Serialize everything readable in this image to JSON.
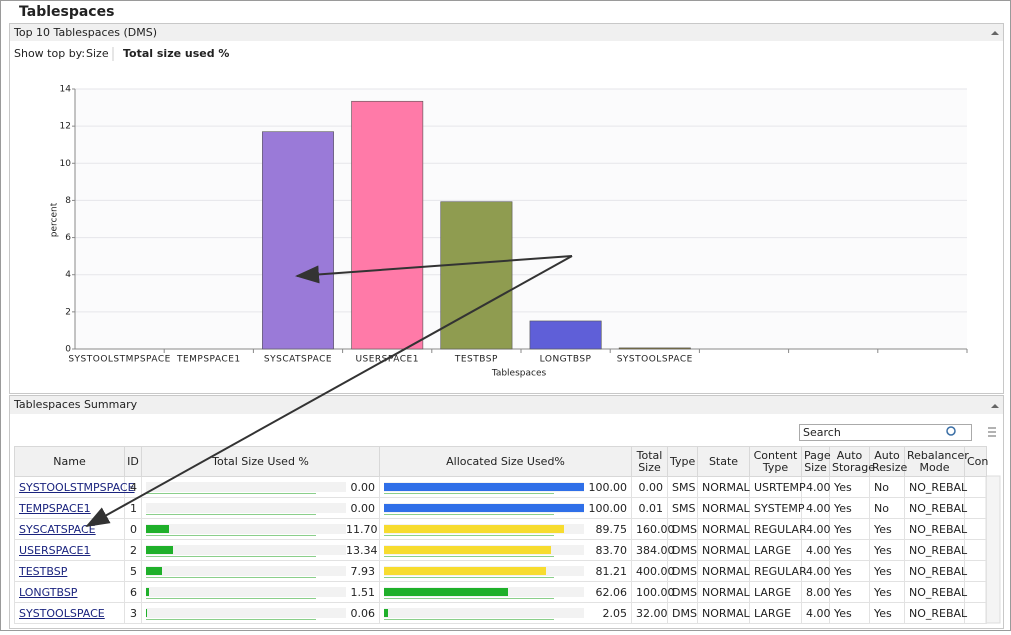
{
  "title": "Tablespaces",
  "top_panel": {
    "title": "Top 10 Tablespaces (DMS)",
    "show_top_by_label": "Show top by:",
    "options": [
      "Size",
      "Total size used %"
    ]
  },
  "chart_data": {
    "type": "bar",
    "categories": [
      "SYSTOOLSTMPSPACE",
      "TEMPSPACE1",
      "SYSCATSPACE",
      "USERSPACE1",
      "TESTBSP",
      "LONGTBSP",
      "SYSTOOLSPACE",
      null,
      null,
      null
    ],
    "values": [
      0,
      0,
      11.7,
      13.34,
      7.93,
      1.51,
      0.06,
      null,
      null,
      null
    ],
    "colors": [
      null,
      null,
      "#9a7ad8",
      "#ff7aa8",
      "#8f9c50",
      "#5f5fd8",
      "#8a7a3a",
      null,
      null,
      null
    ],
    "xlabel": "Tablespaces",
    "ylabel": "percent",
    "ylim": [
      0,
      14
    ],
    "yticks": [
      0,
      2,
      4,
      6,
      8,
      10,
      12,
      14
    ],
    "grid": true
  },
  "summary_panel": {
    "title": "Tablespaces Summary",
    "search_placeholder": "Search"
  },
  "table": {
    "columns": [
      "Name",
      "ID",
      "Total Size Used %",
      "Allocated Size Used%",
      "Total Size",
      "Type",
      "State",
      "Content Type",
      "Page Size",
      "Auto Storage",
      "Auto Resize",
      "Rebalancer Mode",
      "Con"
    ],
    "rows": [
      [
        "SYSTOOLSTMPSPACE",
        "4",
        "0.00",
        "100.00",
        "0.00",
        "SMS",
        "NORMAL",
        "USRTEMP",
        "4.00",
        "Yes",
        "No",
        "NO_REBAL"
      ],
      [
        "TEMPSPACE1",
        "1",
        "0.00",
        "100.00",
        "0.01",
        "SMS",
        "NORMAL",
        "SYSTEMP",
        "4.00",
        "Yes",
        "No",
        "NO_REBAL"
      ],
      [
        "SYSCATSPACE",
        "0",
        "11.70",
        "89.75",
        "160.00",
        "DMS",
        "NORMAL",
        "REGULAR",
        "4.00",
        "Yes",
        "Yes",
        "NO_REBAL"
      ],
      [
        "USERSPACE1",
        "2",
        "13.34",
        "83.70",
        "384.00",
        "DMS",
        "NORMAL",
        "LARGE",
        "4.00",
        "Yes",
        "Yes",
        "NO_REBAL"
      ],
      [
        "TESTBSP",
        "5",
        "7.93",
        "81.21",
        "400.00",
        "DMS",
        "NORMAL",
        "REGULAR",
        "4.00",
        "Yes",
        "Yes",
        "NO_REBAL"
      ],
      [
        "LONGTBSP",
        "6",
        "1.51",
        "62.06",
        "100.00",
        "DMS",
        "NORMAL",
        "LARGE",
        "8.00",
        "Yes",
        "Yes",
        "NO_REBAL"
      ],
      [
        "SYSTOOLSPACE",
        "3",
        "0.06",
        "2.05",
        "32.00",
        "DMS",
        "NORMAL",
        "LARGE",
        "4.00",
        "Yes",
        "Yes",
        "NO_REBAL"
      ]
    ],
    "used_bar_color": "#1fb02a",
    "alloc_bar_colors": [
      "#2f6fe8",
      "#2f6fe8",
      "#f7dc2f",
      "#f7dc2f",
      "#f7dc2f",
      "#1fb02a",
      "#1fb02a"
    ]
  }
}
